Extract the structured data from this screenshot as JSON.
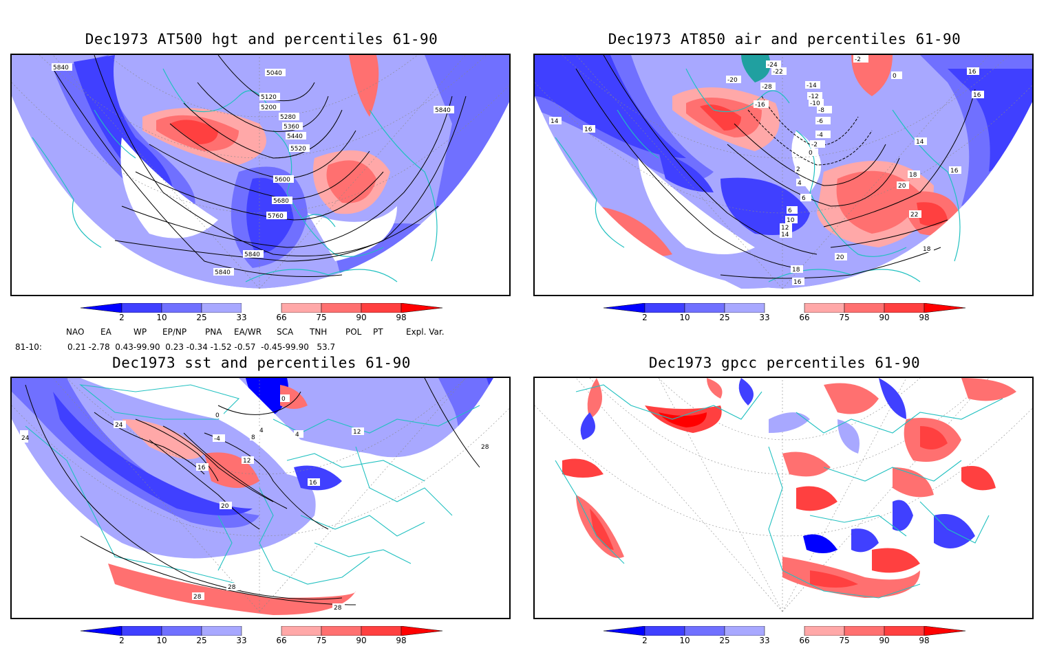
{
  "panels": [
    {
      "id": "hgt500",
      "title": "Dec1973 AT500 hgt and percentiles 61-90",
      "contour_labels": [
        "5840",
        "5040",
        "5120",
        "5200",
        "5280",
        "5360",
        "5440",
        "5520",
        "5600",
        "5680",
        "5760",
        "5840",
        "5840",
        "5840"
      ]
    },
    {
      "id": "air850",
      "title": "Dec1973 AT850 air and percentiles 61-90",
      "contour_labels": [
        "-2",
        "-24",
        "-22",
        "-20",
        "-28",
        "-16",
        "-14",
        "-12",
        "-10",
        "-8",
        "-6",
        "-4",
        "-2",
        "0",
        "0",
        "2",
        "4",
        "6",
        "6",
        "10",
        "12",
        "14",
        "14",
        "16",
        "16",
        "16",
        "14",
        "16",
        "18",
        "20",
        "22",
        "20",
        "18",
        "18",
        "16"
      ]
    },
    {
      "id": "sst",
      "title": "Dec1973 sst and percentiles 61-90",
      "contour_labels": [
        "24",
        "24",
        "0",
        "0",
        "4",
        "8",
        "4",
        "-4",
        "12",
        "16",
        "16",
        "20",
        "28",
        "28",
        "28",
        "28",
        "12"
      ]
    },
    {
      "id": "gpcc",
      "title": "Dec1973 gpcc percentiles 61-90",
      "contour_labels": []
    }
  ],
  "colorbar": {
    "labels": [
      "2",
      "10",
      "25",
      "33",
      "66",
      "75",
      "90",
      "98"
    ],
    "colors": {
      "dark_blue": "#0000ff",
      "blue": "#4040ff",
      "mid_blue": "#7070ff",
      "light_blue": "#a8a8ff",
      "light_red": "#ffa8a8",
      "mid_red": "#ff7070",
      "red": "#ff4040",
      "dark_red": "#ff0000"
    }
  },
  "indices": {
    "headers": [
      "NAO",
      "EA",
      "WP",
      "EP/NP",
      "PNA",
      "EA/WR",
      "SCA",
      "TNH",
      "POL",
      "PT",
      "Expl. Var."
    ],
    "row_label": "81-10:",
    "row_values": "0.21 -2.78  0.43-99.90  0.23 -0.34 -1.52 -0.57  -0.45-99.90   53.7"
  },
  "map_style": {
    "coast": "#20c0c0",
    "contour": "#000000",
    "grid": "#888888"
  }
}
